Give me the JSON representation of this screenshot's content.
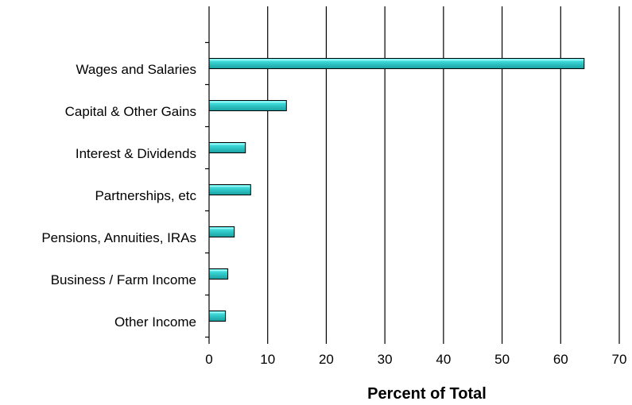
{
  "chart_data": {
    "type": "bar",
    "orientation": "horizontal",
    "title": "",
    "xlabel": "Percent of Total",
    "ylabel": "",
    "xlim": [
      0,
      70
    ],
    "xticks": [
      0,
      10,
      20,
      30,
      40,
      50,
      60,
      70
    ],
    "grid": "vertical",
    "legend": "none",
    "bar_color": "#33cccc",
    "categories": [
      "Wages and Salaries",
      "Capital & Other Gains",
      "Interest & Dividends",
      "Partnerships, etc",
      "Pensions, Annuities, IRAs",
      "Business / Farm Income",
      "Other Income"
    ],
    "values": [
      64,
      13.2,
      6.2,
      7.1,
      4.3,
      3.2,
      2.8
    ]
  }
}
